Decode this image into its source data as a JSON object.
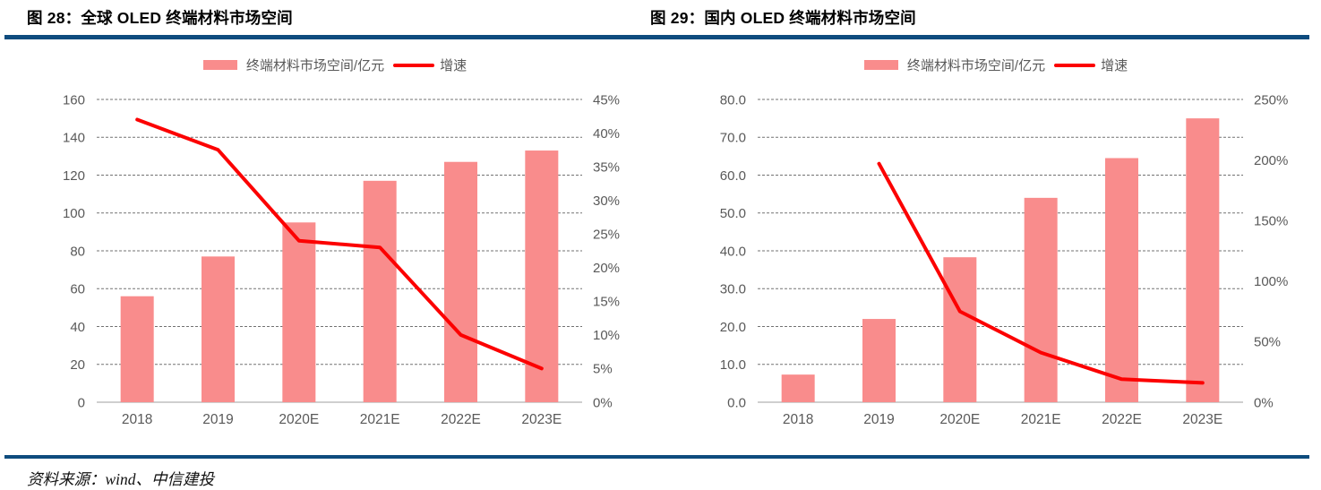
{
  "header": {
    "figure_titles": [
      "图 28：全球 OLED 终端材料市场空间",
      "图 29：国内 OLED 终端材料市场空间"
    ]
  },
  "chart_data": [
    {
      "type": "bar+line",
      "title": "全球 OLED 终端材料市场空间",
      "categories": [
        "2018",
        "2019",
        "2020E",
        "2021E",
        "2022E",
        "2023E"
      ],
      "series": [
        {
          "name": "终端材料市场空间/亿元",
          "type": "bar",
          "axis": "left",
          "unit": "亿元",
          "values": [
            56,
            77,
            95,
            117,
            127,
            133
          ]
        },
        {
          "name": "增速",
          "type": "line",
          "axis": "right",
          "unit": "%",
          "values": [
            42,
            37.5,
            24,
            23,
            10,
            5
          ]
        }
      ],
      "left_axis": {
        "min": 0,
        "max": 160,
        "step": 20,
        "tick_labels": [
          "0",
          "20",
          "40",
          "60",
          "80",
          "100",
          "120",
          "140",
          "160"
        ]
      },
      "right_axis": {
        "min": 0,
        "max": 45,
        "step": 5,
        "tick_labels": [
          "0%",
          "5%",
          "10%",
          "15%",
          "20%",
          "25%",
          "30%",
          "35%",
          "40%",
          "45%"
        ]
      },
      "legend_position": "top",
      "grid": "horizontal-dashed"
    },
    {
      "type": "bar+line",
      "title": "国内 OLED 终端材料市场空间",
      "categories": [
        "2018",
        "2019",
        "2020E",
        "2021E",
        "2022E",
        "2023E"
      ],
      "series": [
        {
          "name": "终端材料市场空间/亿元",
          "type": "bar",
          "axis": "left",
          "unit": "亿元",
          "values": [
            7.3,
            22,
            38.3,
            54,
            64.5,
            75
          ]
        },
        {
          "name": "增速",
          "type": "line",
          "axis": "right",
          "unit": "%",
          "values": [
            null,
            197,
            75,
            41,
            19,
            16
          ]
        }
      ],
      "left_axis": {
        "min": 0,
        "max": 80,
        "step": 10,
        "tick_labels": [
          "0.0",
          "10.0",
          "20.0",
          "30.0",
          "40.0",
          "50.0",
          "60.0",
          "70.0",
          "80.0"
        ]
      },
      "right_axis": {
        "min": 0,
        "max": 250,
        "step": 50,
        "tick_labels": [
          "0%",
          "50%",
          "100%",
          "150%",
          "200%",
          "250%"
        ]
      },
      "legend_position": "top",
      "grid": "horizontal-dashed"
    }
  ],
  "footer": {
    "source": "资料来源：wind、中信建投"
  },
  "colors": {
    "bar": "#F98C8C",
    "line": "#FC0000",
    "rule": "#0E4C7E",
    "axis_text": "#595959",
    "grid": "#5A5A5A",
    "axis_line": "#BFBFBF",
    "title_text": "#000000"
  }
}
